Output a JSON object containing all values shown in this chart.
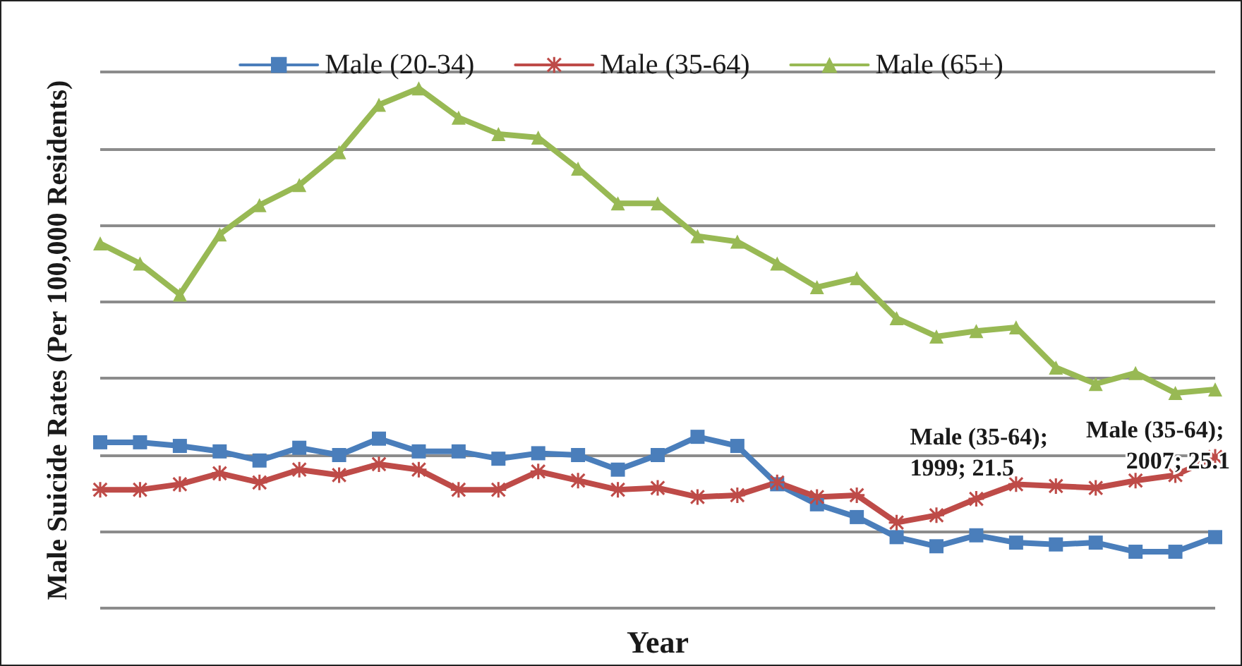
{
  "chart_data": {
    "type": "line",
    "xlabel": "Year",
    "ylabel": "Male Suicide Rates (Per 100,000 Residents)",
    "categories": [
      null,
      null,
      null,
      null,
      null,
      null,
      null,
      null,
      null,
      null,
      null,
      null,
      null,
      null,
      null,
      null,
      null,
      null,
      null,
      null,
      null,
      null,
      null,
      null,
      null,
      null,
      null,
      null,
      null
    ],
    "series": [
      {
        "name": "Male (20-34)",
        "color": "#4a7ebb",
        "marker": "square",
        "values": [
          25.9,
          25.9,
          25.7,
          25.4,
          24.9,
          25.6,
          25.2,
          26.1,
          25.4,
          25.4,
          25.0,
          25.3,
          25.2,
          24.4,
          25.2,
          26.2,
          25.7,
          23.6,
          22.5,
          21.8,
          20.7,
          20.2,
          20.8,
          20.4,
          20.3,
          20.4,
          19.9,
          19.9,
          20.7
        ]
      },
      {
        "name": "Male (35-64)",
        "color": "#be4b48",
        "marker": "cross",
        "values": [
          23.3,
          23.3,
          23.6,
          24.2,
          23.7,
          24.4,
          24.1,
          24.7,
          24.4,
          23.3,
          23.3,
          24.3,
          23.8,
          23.3,
          23.4,
          22.9,
          23.0,
          23.7,
          22.9,
          23.0,
          21.5,
          21.9,
          22.8,
          23.6,
          23.5,
          23.4,
          23.8,
          24.1,
          25.1
        ],
        "value_labels": [
          null,
          null,
          null,
          null,
          null,
          null,
          null,
          null,
          null,
          null,
          null,
          null,
          null,
          null,
          null,
          null,
          null,
          null,
          null,
          null,
          "Male (35-64); 1999; 21.5",
          null,
          null,
          null,
          null,
          null,
          null,
          null,
          "Male (35-64); 2007; 25.1"
        ]
      },
      {
        "name": "Male (65+)",
        "color": "#98b954",
        "marker": "triangle",
        "values": [
          36.8,
          35.7,
          34.0,
          37.3,
          38.9,
          40.0,
          41.8,
          44.4,
          45.3,
          43.7,
          42.8,
          42.6,
          40.9,
          39.0,
          39.0,
          37.2,
          36.9,
          35.7,
          34.4,
          34.9,
          32.7,
          31.7,
          32.0,
          32.2,
          30.0,
          29.1,
          29.7,
          28.6,
          28.8
        ]
      }
    ],
    "ylim": [
      16.8,
      46.2
    ],
    "yticks": [
      {
        "value": 16.8,
        "label": null
      },
      {
        "value": 21,
        "label": null
      },
      {
        "value": 25.2,
        "label": null
      },
      {
        "value": 29.4,
        "label": null
      },
      {
        "value": 33.6,
        "label": null
      },
      {
        "value": 37.8,
        "label": null
      },
      {
        "value": 42,
        "label": null
      },
      {
        "value": 46.2,
        "label": null
      }
    ],
    "grid": "y",
    "legend": "top",
    "line_style": "solid"
  }
}
